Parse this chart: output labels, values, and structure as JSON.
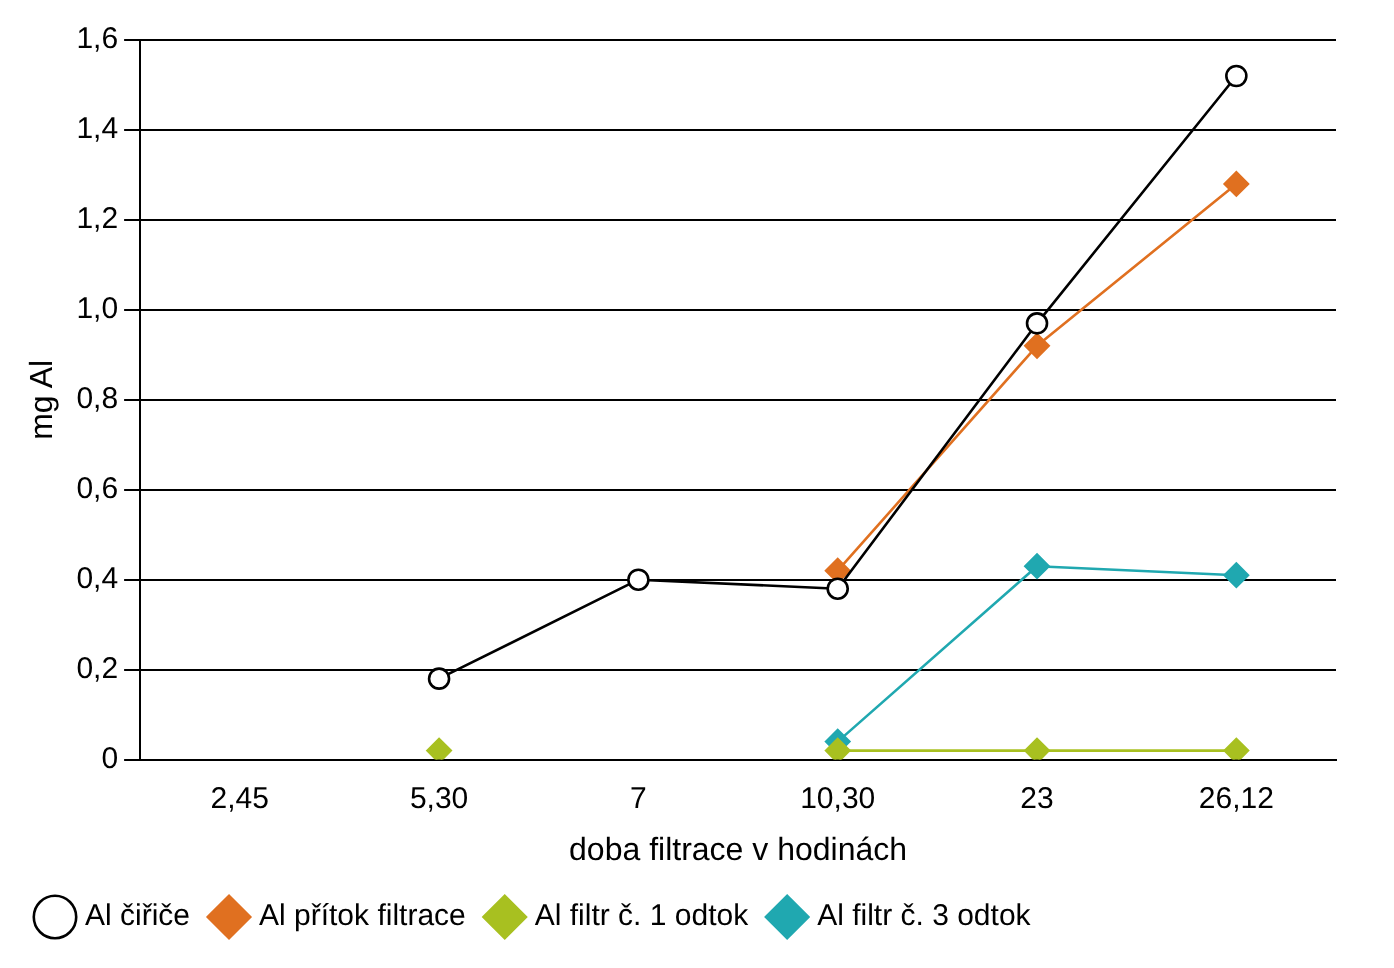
{
  "chart_data": {
    "type": "line",
    "xlabel": "doba filtrace v hodinách",
    "ylabel": "mg Al",
    "categories": [
      "2,45",
      "5,30",
      "7",
      "10,30",
      "23",
      "26,12"
    ],
    "series": [
      {
        "name": "Al čiřiče",
        "color": "#000000",
        "marker": "circle",
        "values": [
          null,
          0.18,
          0.4,
          0.38,
          0.97,
          1.52
        ]
      },
      {
        "name": "Al přítok filtrace",
        "color": "#e07020",
        "marker": "diamond",
        "values": [
          null,
          null,
          null,
          0.42,
          0.92,
          1.28
        ]
      },
      {
        "name": "Al filtr č. 1 odtok",
        "color": "#a8c020",
        "marker": "diamond",
        "values": [
          null,
          0.02,
          null,
          0.02,
          0.02,
          0.02
        ]
      },
      {
        "name": "Al filtr č. 3 odtok",
        "color": "#20a8b0",
        "marker": "diamond",
        "values": [
          null,
          null,
          null,
          0.04,
          0.43,
          0.41
        ]
      }
    ],
    "ylim": [
      0,
      1.6
    ],
    "yticks": [
      0,
      {
        "value": 0.2,
        "label": "0,2"
      },
      {
        "value": 0.4,
        "label": "0,4"
      },
      {
        "value": 0.6,
        "label": "0,6"
      },
      {
        "value": 0.8,
        "label": "0,8"
      },
      {
        "value": 1.0,
        "label": "1,0"
      },
      {
        "value": 1.2,
        "label": "1,2"
      },
      {
        "value": 1.4,
        "label": "1,4"
      },
      {
        "value": 1.6,
        "label": "1,6"
      }
    ],
    "grid": "y",
    "legend": "bottom"
  }
}
